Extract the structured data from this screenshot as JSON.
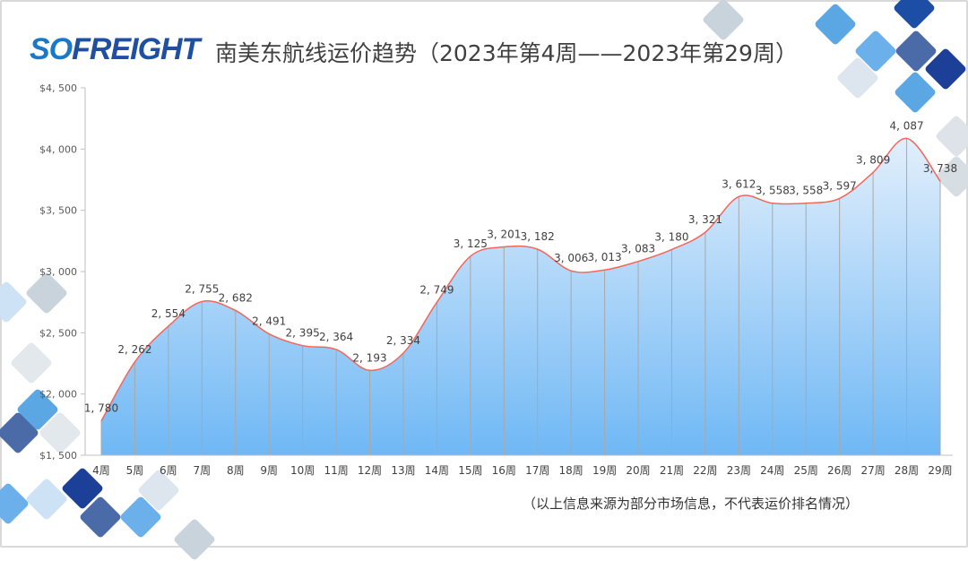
{
  "logo_text": "SOFREIGHT",
  "title": "南美东航线运价趋势（2023年第4周——2023年第29周）",
  "footnote": "（以上信息来源为部分市场信息，不代表运价排名情况）",
  "colors": {
    "line": "#f4665a",
    "fill_top": "#dcecfb",
    "fill_bottom": "#6fb8f5",
    "grid": "#a8a8a8"
  },
  "chart_data": {
    "type": "area",
    "title": "南美东航线运价趋势（2023年第4周——2023年第29周）",
    "categories": [
      "4周",
      "5周",
      "6周",
      "7周",
      "8周",
      "9周",
      "10周",
      "11周",
      "12周",
      "13周",
      "14周",
      "15周",
      "16周",
      "17周",
      "18周",
      "19周",
      "20周",
      "21周",
      "22周",
      "23周",
      "24周",
      "25周",
      "26周",
      "27周",
      "28周",
      "29周"
    ],
    "values": [
      1780,
      2262,
      2554,
      2755,
      2682,
      2491,
      2395,
      2364,
      2193,
      2334,
      2749,
      3125,
      3201,
      3182,
      3006,
      3013,
      3083,
      3180,
      3321,
      3612,
      3558,
      3558,
      3597,
      3809,
      4087,
      3738
    ],
    "data_labels": [
      "1, 780",
      "2, 262",
      "2, 554",
      "2, 755",
      "2, 682",
      "2, 491",
      "2, 395",
      "2, 364",
      "2, 193",
      "2, 334",
      "2, 749",
      "3, 125",
      "3, 201",
      "3, 182",
      "3, 006",
      "3, 013",
      "3, 083",
      "3, 180",
      "3, 321",
      "3, 612",
      "3, 558",
      "3, 558",
      "3, 597",
      "3, 809",
      "4, 087",
      "3, 738"
    ],
    "yticks": [
      "$1, 500",
      "$2, 000",
      "$2, 500",
      "$3, 000",
      "$3, 500",
      "$4, 000",
      "$4, 500"
    ],
    "ylim": [
      1500,
      4500
    ],
    "smooth": true,
    "grid": false
  }
}
